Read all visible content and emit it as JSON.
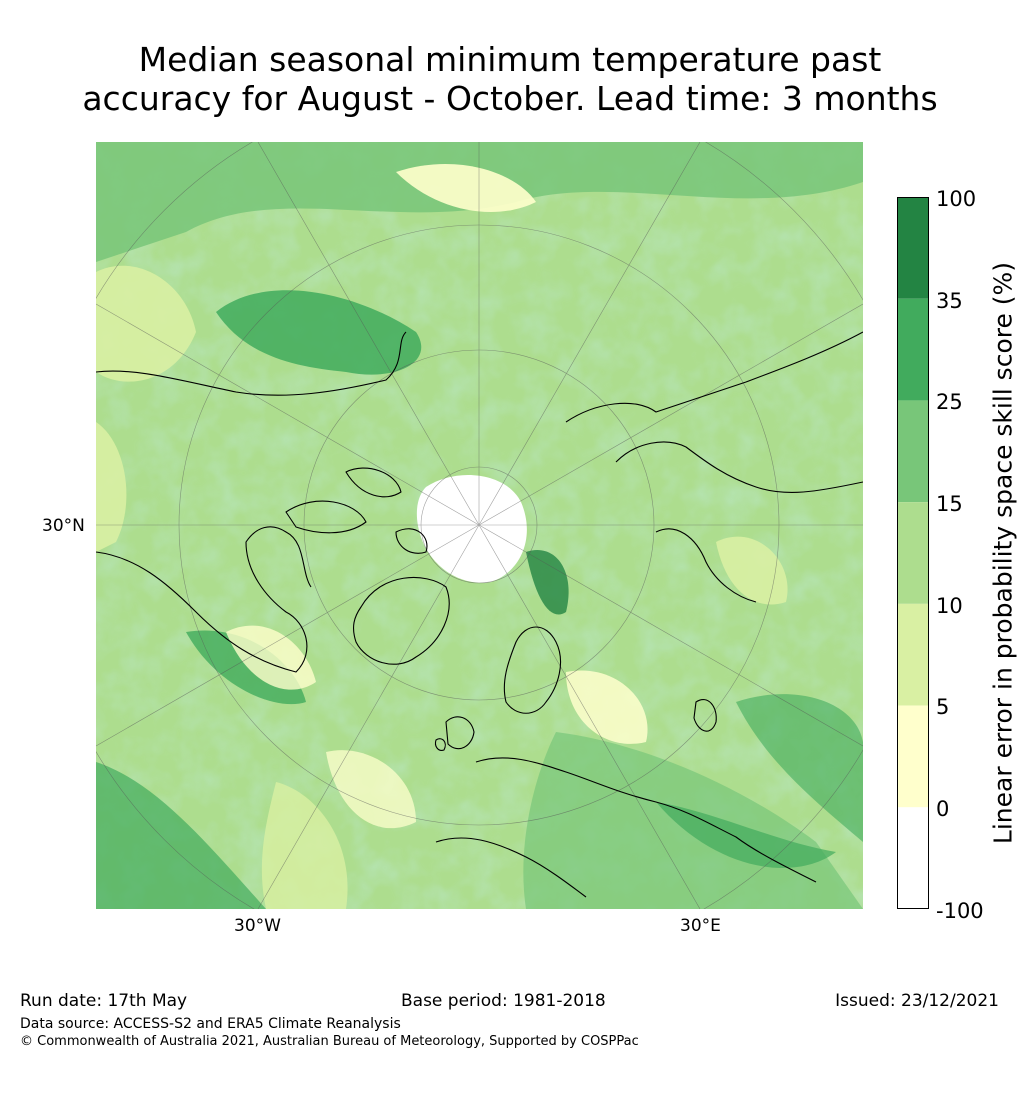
{
  "title": {
    "line1": "Median seasonal minimum temperature past",
    "line2": "accuracy for August - October. Lead time: 3 months"
  },
  "map": {
    "projection": "north polar stereographic",
    "graticule_labels": {
      "left": "30°N",
      "bottom_left": "30°W",
      "bottom_right": "30°E"
    }
  },
  "colorbar": {
    "title": "Linear error in probability space skill score (%)",
    "ticks": [
      "100",
      "35",
      "25",
      "15",
      "10",
      "5",
      "0",
      "-100"
    ],
    "bins": [
      {
        "range": "-100 to 0",
        "color": "#ffffff"
      },
      {
        "range": "0 to 5",
        "color": "#ffffcc"
      },
      {
        "range": "5 to 10",
        "color": "#d9f0a3"
      },
      {
        "range": "10 to 15",
        "color": "#addd8e"
      },
      {
        "range": "15 to 25",
        "color": "#78c679"
      },
      {
        "range": "25 to 35",
        "color": "#41ab5d"
      },
      {
        "range": "35 to 100",
        "color": "#238443"
      }
    ]
  },
  "footer": {
    "run_date": "Run date: 17th May",
    "base_period": "Base period: 1981-2018",
    "issued": "Issued: 23/12/2021",
    "data_source": "Data source: ACCESS-S2 and ERA5 Climate Reanalysis",
    "copyright": "© Commonwealth of Australia 2021, Australian Bureau of Meteorology, Supported by COSPPac"
  }
}
